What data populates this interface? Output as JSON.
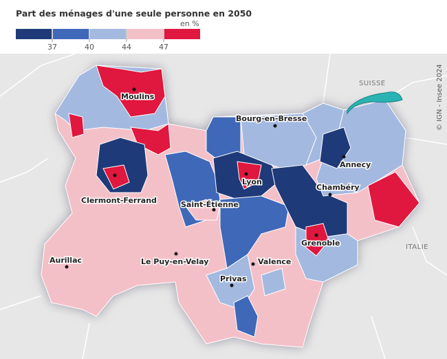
{
  "title": "Part des ménages d'une seule personne en 2050",
  "legend": {
    "unit": "en %",
    "colors": [
      "#1f3a78",
      "#3f68b8",
      "#a3b9e0",
      "#f4c0c8",
      "#e0173e"
    ],
    "ticks": [
      37,
      40,
      44,
      47
    ]
  },
  "cities": [
    "Moulins",
    "Bourg-en-Bresse",
    "Annecy",
    "Clermont-Ferrand",
    "Lyon",
    "Chambéry",
    "Saint-Étienne",
    "Grenoble",
    "Aurillac",
    "Le Puy-en-Velay",
    "Valence",
    "Privas"
  ],
  "countries": [
    "SUISSE",
    "ITALIE"
  ],
  "credit": "© IGN - Insee 2024"
}
